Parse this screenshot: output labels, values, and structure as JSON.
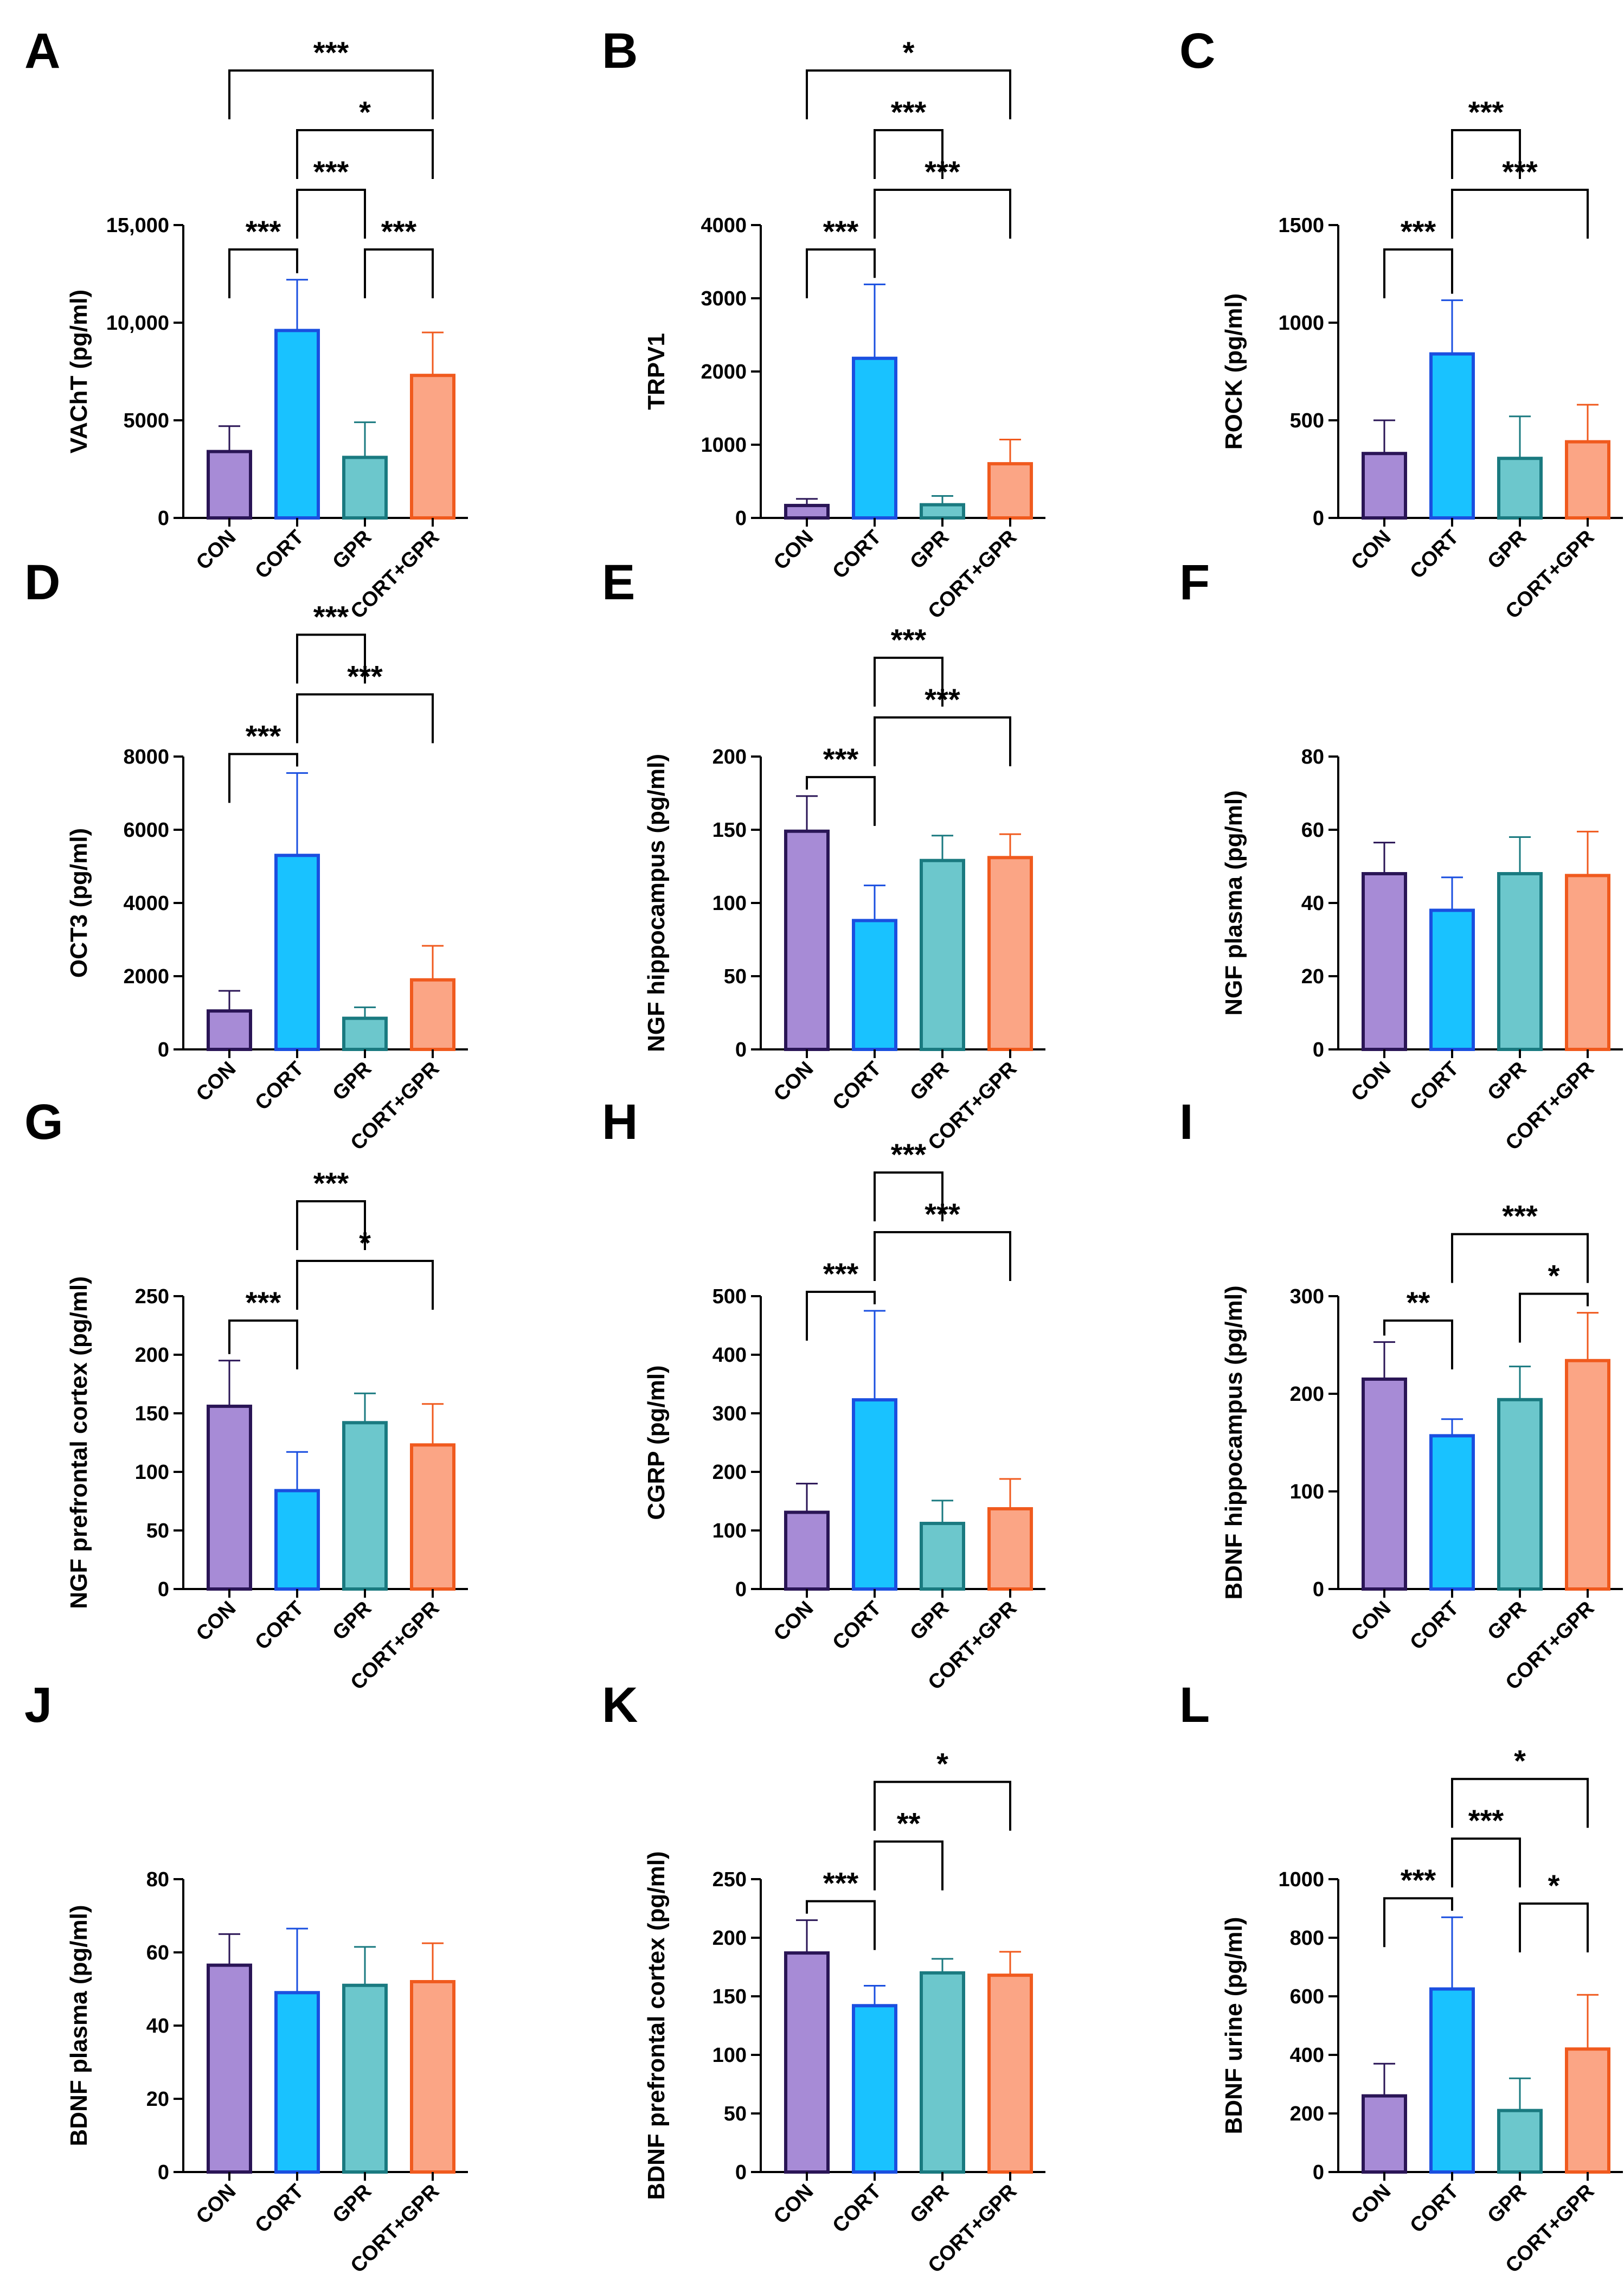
{
  "figure": {
    "description_free": true
  },
  "chart_data": [
    {
      "letter": "A",
      "type": "bar",
      "ylabel": "VAChT (pg/ml)",
      "categories": [
        "CON",
        "CORT",
        "GPR",
        "CORT+GPR"
      ],
      "values": [
        3400,
        9600,
        3100,
        7300
      ],
      "errors": [
        1300,
        2600,
        1800,
        2200
      ],
      "ylim": [
        0,
        15000
      ],
      "yticks": [
        "0",
        "5000",
        "10,000",
        "15,000"
      ],
      "tickvals": [
        0,
        5000,
        10000,
        15000
      ],
      "brackets": [
        {
          "a": 0,
          "b": 1,
          "label": "***"
        },
        {
          "a": 2,
          "b": 3,
          "label": "***"
        },
        {
          "a": 1,
          "b": 2,
          "label": "***"
        },
        {
          "a": 1,
          "b": 3,
          "label": "*"
        },
        {
          "a": 0,
          "b": 3,
          "label": "***"
        }
      ]
    },
    {
      "letter": "B",
      "type": "bar",
      "ylabel": "TRPV1",
      "categories": [
        "CON",
        "CORT",
        "GPR",
        "CORT+GPR"
      ],
      "values": [
        170,
        2180,
        180,
        740
      ],
      "errors": [
        90,
        1010,
        120,
        330
      ],
      "ylim": [
        0,
        4000
      ],
      "yticks": [
        "0",
        "1000",
        "2000",
        "3000",
        "4000"
      ],
      "tickvals": [
        0,
        1000,
        2000,
        3000,
        4000
      ],
      "brackets": [
        {
          "a": 0,
          "b": 1,
          "label": "***"
        },
        {
          "a": 1,
          "b": 3,
          "label": "***"
        },
        {
          "a": 1,
          "b": 2,
          "label": "***"
        },
        {
          "a": 0,
          "b": 3,
          "label": "*"
        }
      ]
    },
    {
      "letter": "C",
      "type": "bar",
      "ylabel": "ROCK (pg/ml)",
      "categories": [
        "CON",
        "CORT",
        "GPR",
        "CORT+GPR"
      ],
      "values": [
        330,
        840,
        305,
        390
      ],
      "errors": [
        170,
        275,
        215,
        190
      ],
      "ylim": [
        0,
        1500
      ],
      "yticks": [
        "0",
        "500",
        "1000",
        "1500"
      ],
      "tickvals": [
        0,
        500,
        1000,
        1500
      ],
      "brackets": [
        {
          "a": 0,
          "b": 1,
          "label": "***"
        },
        {
          "a": 1,
          "b": 3,
          "label": "***"
        },
        {
          "a": 1,
          "b": 2,
          "label": "***"
        }
      ]
    },
    {
      "letter": "D",
      "type": "bar",
      "ylabel": "OCT3 (pg/ml)",
      "categories": [
        "CON",
        "CORT",
        "GPR",
        "CORT+GPR"
      ],
      "values": [
        1050,
        5300,
        850,
        1900
      ],
      "errors": [
        550,
        2250,
        300,
        930
      ],
      "ylim": [
        0,
        8000
      ],
      "yticks": [
        "0",
        "2000",
        "4000",
        "6000",
        "8000"
      ],
      "tickvals": [
        0,
        2000,
        4000,
        6000,
        8000
      ],
      "brackets": [
        {
          "a": 0,
          "b": 1,
          "label": "***"
        },
        {
          "a": 1,
          "b": 3,
          "label": "***"
        },
        {
          "a": 1,
          "b": 2,
          "label": "***"
        }
      ]
    },
    {
      "letter": "E",
      "type": "bar",
      "ylabel": "NGF hippocampus (pg/ml)",
      "categories": [
        "CON",
        "CORT",
        "GPR",
        "CORT+GPR"
      ],
      "values": [
        149,
        88,
        129,
        131
      ],
      "errors": [
        24,
        24,
        17,
        16
      ],
      "ylim": [
        0,
        200
      ],
      "yticks": [
        "0",
        "50",
        "100",
        "150",
        "200"
      ],
      "tickvals": [
        0,
        50,
        100,
        150,
        200
      ],
      "brackets": [
        {
          "a": 0,
          "b": 1,
          "label": "***"
        },
        {
          "a": 1,
          "b": 3,
          "label": "***"
        },
        {
          "a": 1,
          "b": 2,
          "label": "***"
        }
      ]
    },
    {
      "letter": "F",
      "type": "bar",
      "ylabel": "NGF plasma (pg/ml)",
      "categories": [
        "CON",
        "CORT",
        "GPR",
        "CORT+GPR"
      ],
      "values": [
        48,
        38,
        48,
        47.5
      ],
      "errors": [
        8.5,
        9,
        10,
        12
      ],
      "ylim": [
        0,
        80
      ],
      "yticks": [
        "0",
        "20",
        "40",
        "60",
        "80"
      ],
      "tickvals": [
        0,
        20,
        40,
        60,
        80
      ],
      "brackets": []
    },
    {
      "letter": "G",
      "type": "bar",
      "ylabel": "NGF prefrontal cortex (pg/ml)",
      "categories": [
        "CON",
        "CORT",
        "GPR",
        "CORT+GPR"
      ],
      "values": [
        156,
        84,
        142,
        123
      ],
      "errors": [
        39,
        33,
        25,
        35
      ],
      "ylim": [
        0,
        250
      ],
      "yticks": [
        "0",
        "50",
        "100",
        "150",
        "200",
        "250"
      ],
      "tickvals": [
        0,
        50,
        100,
        150,
        200,
        250
      ],
      "brackets": [
        {
          "a": 0,
          "b": 1,
          "label": "***"
        },
        {
          "a": 1,
          "b": 3,
          "label": "*"
        },
        {
          "a": 1,
          "b": 2,
          "label": "***"
        }
      ]
    },
    {
      "letter": "H",
      "type": "bar",
      "ylabel": "CGRP (pg/ml)",
      "categories": [
        "CON",
        "CORT",
        "GPR",
        "CORT+GPR"
      ],
      "values": [
        131,
        323,
        112,
        137
      ],
      "errors": [
        49,
        152,
        39,
        51
      ],
      "ylim": [
        0,
        500
      ],
      "yticks": [
        "0",
        "100",
        "200",
        "300",
        "400",
        "500"
      ],
      "tickvals": [
        0,
        100,
        200,
        300,
        400,
        500
      ],
      "brackets": [
        {
          "a": 0,
          "b": 1,
          "label": "***"
        },
        {
          "a": 1,
          "b": 3,
          "label": "***"
        },
        {
          "a": 1,
          "b": 2,
          "label": "***"
        }
      ]
    },
    {
      "letter": "I",
      "type": "bar",
      "ylabel": "BDNF hippocampus (pg/ml)",
      "categories": [
        "CON",
        "CORT",
        "GPR",
        "CORT+GPR"
      ],
      "values": [
        215,
        157,
        194,
        234
      ],
      "errors": [
        38,
        17,
        34,
        49
      ],
      "ylim": [
        0,
        300
      ],
      "yticks": [
        "0",
        "100",
        "200",
        "300"
      ],
      "tickvals": [
        0,
        100,
        200,
        300
      ],
      "brackets": [
        {
          "a": 0,
          "b": 1,
          "label": "**"
        },
        {
          "a": 2,
          "b": 3,
          "label": "*"
        },
        {
          "a": 1,
          "b": 3,
          "label": "***"
        }
      ]
    },
    {
      "letter": "J",
      "type": "bar",
      "ylabel": "BDNF plasma (pg/ml)",
      "categories": [
        "CON",
        "CORT",
        "GPR",
        "CORT+GPR"
      ],
      "values": [
        56.5,
        49,
        51,
        52
      ],
      "errors": [
        8.5,
        17.5,
        10.5,
        10.5
      ],
      "ylim": [
        0,
        80
      ],
      "yticks": [
        "0",
        "20",
        "40",
        "60",
        "80"
      ],
      "tickvals": [
        0,
        20,
        40,
        60,
        80
      ],
      "brackets": []
    },
    {
      "letter": "K",
      "type": "bar",
      "ylabel": "BDNF prefrontal cortex (pg/ml)",
      "categories": [
        "CON",
        "CORT",
        "GPR",
        "CORT+GPR"
      ],
      "values": [
        187,
        142,
        170,
        168
      ],
      "errors": [
        28,
        17,
        12,
        20
      ],
      "ylim": [
        0,
        250
      ],
      "yticks": [
        "0",
        "50",
        "100",
        "150",
        "200",
        "250"
      ],
      "tickvals": [
        0,
        50,
        100,
        150,
        200,
        250
      ],
      "brackets": [
        {
          "a": 0,
          "b": 1,
          "label": "***"
        },
        {
          "a": 1,
          "b": 2,
          "label": "**"
        },
        {
          "a": 1,
          "b": 3,
          "label": "*"
        }
      ]
    },
    {
      "letter": "L",
      "type": "bar",
      "ylabel": "BDNF urine (pg/ml)",
      "categories": [
        "CON",
        "CORT",
        "GPR",
        "CORT+GPR"
      ],
      "values": [
        260,
        625,
        210,
        420
      ],
      "errors": [
        110,
        245,
        110,
        185
      ],
      "ylim": [
        0,
        1000
      ],
      "yticks": [
        "0",
        "200",
        "400",
        "600",
        "800",
        "1000"
      ],
      "tickvals": [
        0,
        200,
        400,
        600,
        800,
        1000
      ],
      "brackets": [
        {
          "a": 0,
          "b": 1,
          "label": "***"
        },
        {
          "a": 2,
          "b": 3,
          "label": "*"
        },
        {
          "a": 1,
          "b": 2,
          "label": "***"
        },
        {
          "a": 1,
          "b": 3,
          "label": "*"
        }
      ]
    }
  ],
  "colors": {
    "fills": [
      "#a78bd6",
      "#19c2ff",
      "#6cc7cc",
      "#fba585"
    ],
    "strokes": [
      "#2a1556",
      "#1a4fe0",
      "#1a7a80",
      "#f05a1e"
    ],
    "axis": "#000000"
  }
}
